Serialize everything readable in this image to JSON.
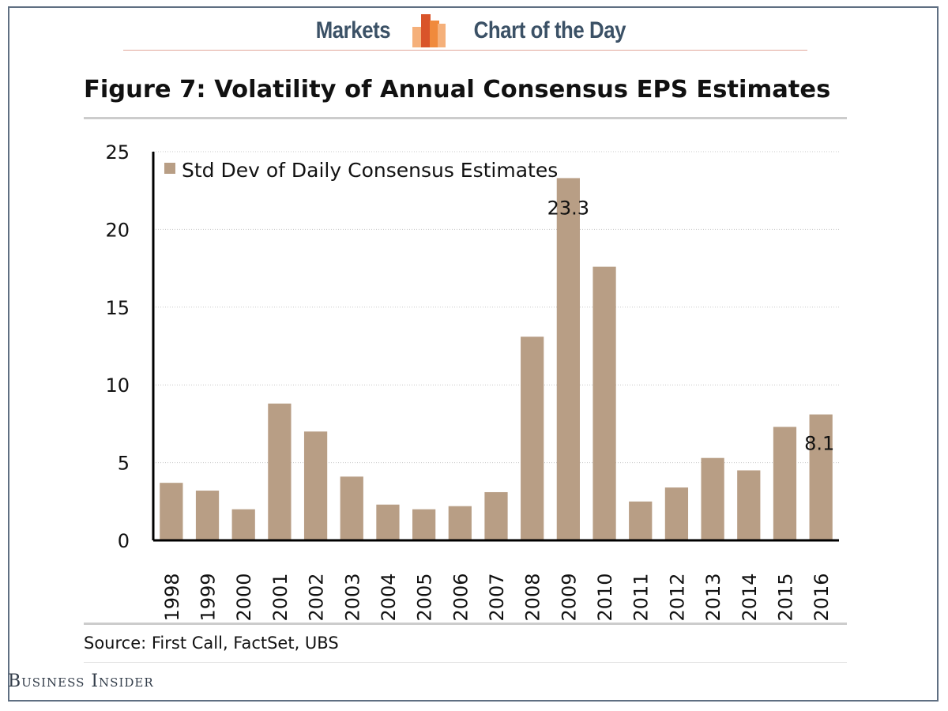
{
  "header": {
    "left_label": "Markets",
    "right_label": "Chart of the Day"
  },
  "title": "Figure 7: Volatility of Annual Consensus EPS Estimates",
  "source": "Source:  First Call, FactSet, UBS",
  "brand": "Business Insider",
  "colors": {
    "bar": "#b89e85",
    "grid": "#c8c8c8",
    "axis": "#000000",
    "header_text": "#3b5166",
    "logo_orange": "#f08a3c",
    "logo_light": "#f5b07a",
    "logo_red": "#d9542a"
  },
  "chart_data": {
    "type": "bar",
    "title": "Figure 7: Volatility of Annual Consensus EPS Estimates",
    "xlabel": "",
    "ylabel": "",
    "ylim": [
      0,
      25
    ],
    "yticks": [
      0,
      5,
      10,
      15,
      20,
      25
    ],
    "grid": true,
    "legend_position": "top-left",
    "categories": [
      "1998",
      "1999",
      "2000",
      "2001",
      "2002",
      "2003",
      "2004",
      "2005",
      "2006",
      "2007",
      "2008",
      "2009",
      "2010",
      "2011",
      "2012",
      "2013",
      "2014",
      "2015",
      "2016"
    ],
    "series": [
      {
        "name": "Std Dev of Daily Consensus Estimates",
        "values": [
          3.7,
          3.2,
          2.0,
          8.8,
          7.0,
          4.1,
          2.3,
          2.0,
          2.2,
          3.1,
          13.1,
          23.3,
          17.6,
          2.5,
          3.4,
          5.3,
          4.5,
          7.3,
          8.1
        ]
      }
    ],
    "data_labels": [
      {
        "category": "2009",
        "text": "23.3"
      },
      {
        "category": "2016",
        "text": "8.1"
      }
    ]
  }
}
